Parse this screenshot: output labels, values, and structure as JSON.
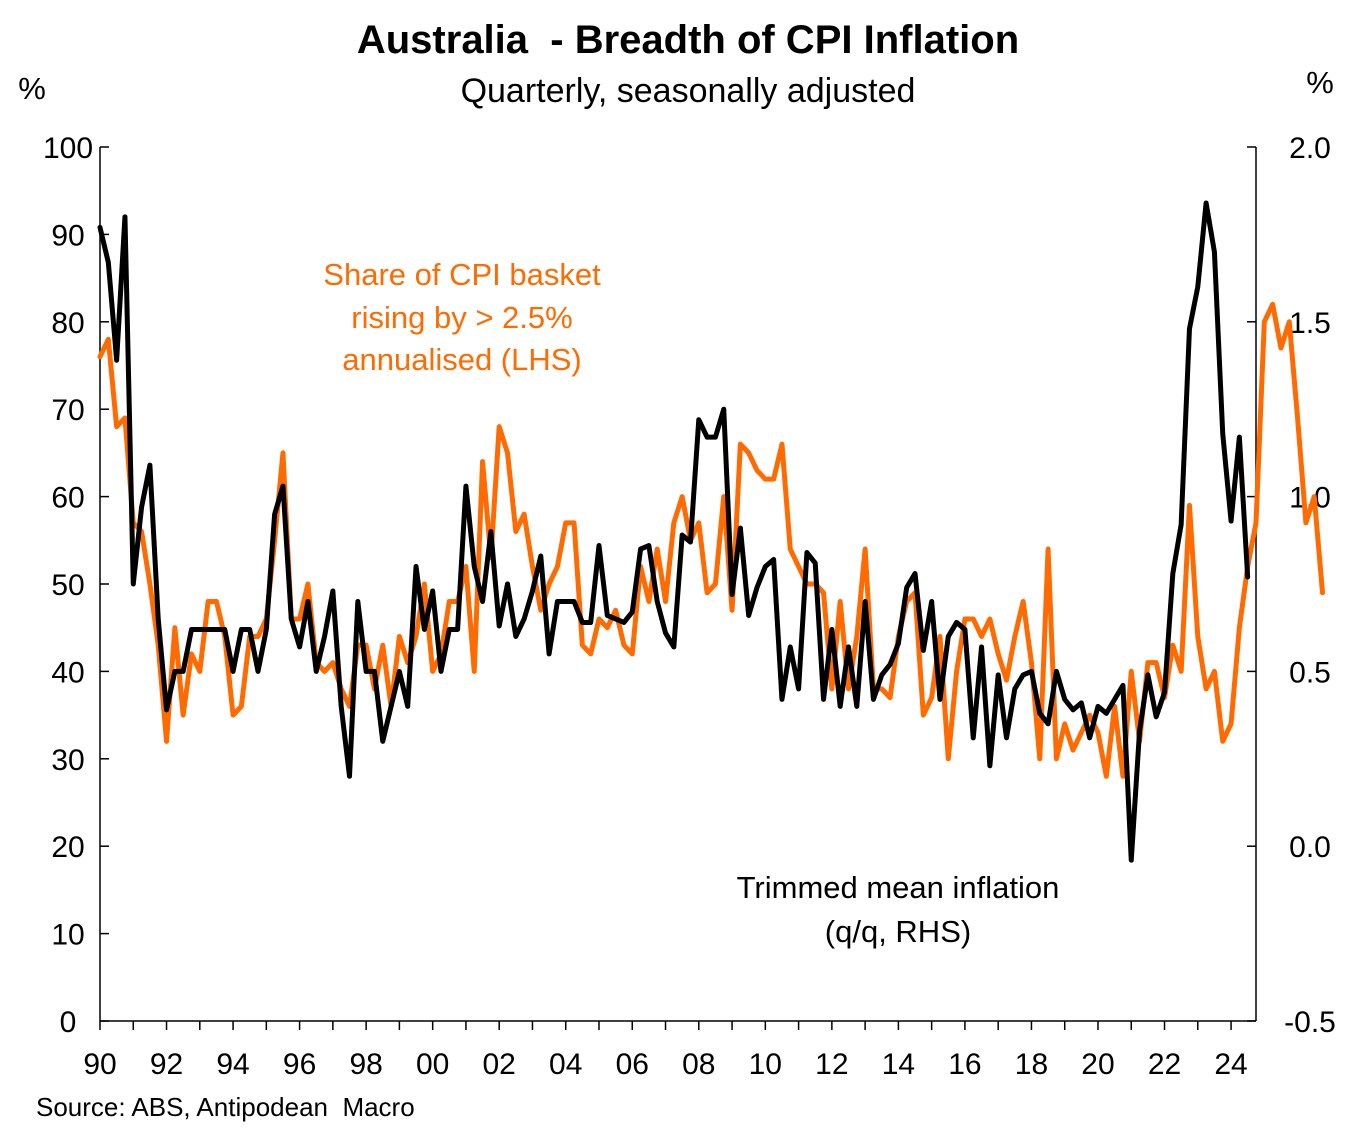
{
  "chart_data": {
    "type": "line",
    "title": "Australia  - Breadth of CPI Inflation",
    "subtitle": "Quarterly, seasonally adjusted",
    "left_unit": "%",
    "right_unit": "%",
    "source": "Source: ABS, Antipodean  Macro",
    "x_range": [
      1990,
      2024.75
    ],
    "x_ticks": [
      "90",
      "92",
      "94",
      "96",
      "98",
      "00",
      "02",
      "04",
      "06",
      "08",
      "10",
      "12",
      "14",
      "16",
      "18",
      "20",
      "22",
      "24"
    ],
    "y_left": {
      "range": [
        0,
        100
      ],
      "ticks": [
        "0",
        "10",
        "20",
        "30",
        "40",
        "50",
        "60",
        "70",
        "80",
        "90",
        "100"
      ]
    },
    "y_right": {
      "range": [
        -0.5,
        2.0
      ],
      "ticks": [
        "-0.5",
        "0.0",
        "0.5",
        "1.0",
        "1.5",
        "2.0"
      ]
    },
    "colors": {
      "share": "#ff6b00",
      "trimmed": "#000000"
    },
    "annotations": {
      "share": [
        "Share of CPI basket",
        "rising by > 2.5%",
        "annualised (LHS)"
      ],
      "trimmed": [
        "Trimmed mean inflation",
        "(q/q, RHS)"
      ]
    },
    "series": [
      {
        "name": "Share of CPI basket rising by > 2.5% annualised (LHS)",
        "axis": "left",
        "start": 1990.0,
        "step": 0.25,
        "values": [
          76,
          78,
          68,
          69,
          57,
          56,
          50,
          43,
          32,
          45,
          35,
          42,
          40,
          48,
          48,
          44,
          35,
          36,
          44,
          44,
          46,
          55,
          65,
          46,
          46,
          50,
          41,
          40,
          41,
          38,
          36,
          43,
          43,
          38,
          43,
          36,
          44,
          41,
          44,
          50,
          40,
          42,
          48,
          48,
          52,
          40,
          64,
          53,
          68,
          65,
          56,
          58,
          52,
          47,
          50,
          52,
          57,
          57,
          43,
          42,
          46,
          45,
          47,
          43,
          42,
          52,
          48,
          54,
          48,
          57,
          60,
          55,
          57,
          49,
          50,
          60,
          47,
          66,
          65,
          63,
          62,
          62,
          66,
          54,
          52,
          50,
          50,
          49,
          38,
          48,
          38,
          44,
          54,
          38,
          38,
          37,
          44,
          48,
          49,
          35,
          37,
          44,
          30,
          40,
          46,
          46,
          44,
          46,
          42,
          39,
          44,
          48,
          41,
          30,
          54,
          30,
          34,
          31,
          33,
          35,
          33,
          28,
          36,
          28,
          40,
          32,
          41,
          41,
          37,
          43,
          40,
          59,
          44,
          38,
          40,
          32,
          34,
          45,
          52,
          57,
          80,
          82,
          77,
          80,
          69,
          57,
          60,
          49
        ]
      },
      {
        "name": "Trimmed mean inflation (q/q, RHS)",
        "axis": "right",
        "start": 1990.0,
        "step": 0.25,
        "values": [
          1.77,
          1.67,
          1.39,
          1.8,
          0.75,
          0.97,
          1.09,
          0.65,
          0.39,
          0.5,
          0.5,
          0.62,
          0.62,
          0.62,
          0.62,
          0.62,
          0.5,
          0.62,
          0.62,
          0.5,
          0.62,
          0.95,
          1.03,
          0.65,
          0.57,
          0.7,
          0.5,
          0.6,
          0.73,
          0.4,
          0.2,
          0.7,
          0.5,
          0.5,
          0.3,
          0.4,
          0.5,
          0.4,
          0.8,
          0.62,
          0.73,
          0.5,
          0.62,
          0.62,
          1.03,
          0.8,
          0.7,
          0.9,
          0.63,
          0.75,
          0.6,
          0.65,
          0.73,
          0.83,
          0.55,
          0.7,
          0.7,
          0.7,
          0.64,
          0.64,
          0.86,
          0.66,
          0.65,
          0.64,
          0.67,
          0.85,
          0.86,
          0.7,
          0.61,
          0.57,
          0.89,
          0.87,
          1.22,
          1.17,
          1.17,
          1.25,
          0.72,
          0.91,
          0.66,
          0.74,
          0.8,
          0.82,
          0.42,
          0.57,
          0.45,
          0.84,
          0.81,
          0.42,
          0.62,
          0.4,
          0.57,
          0.4,
          0.7,
          0.42,
          0.49,
          0.52,
          0.58,
          0.74,
          0.78,
          0.56,
          0.7,
          0.42,
          0.6,
          0.64,
          0.62,
          0.31,
          0.57,
          0.23,
          0.49,
          0.31,
          0.45,
          0.49,
          0.5,
          0.38,
          0.35,
          0.5,
          0.42,
          0.39,
          0.41,
          0.31,
          0.4,
          0.38,
          0.42,
          0.46,
          -0.04,
          0.33,
          0.49,
          0.37,
          0.44,
          0.78,
          0.92,
          1.48,
          1.6,
          1.84,
          1.7,
          1.18,
          0.93,
          1.17,
          0.77
        ]
      }
    ]
  }
}
